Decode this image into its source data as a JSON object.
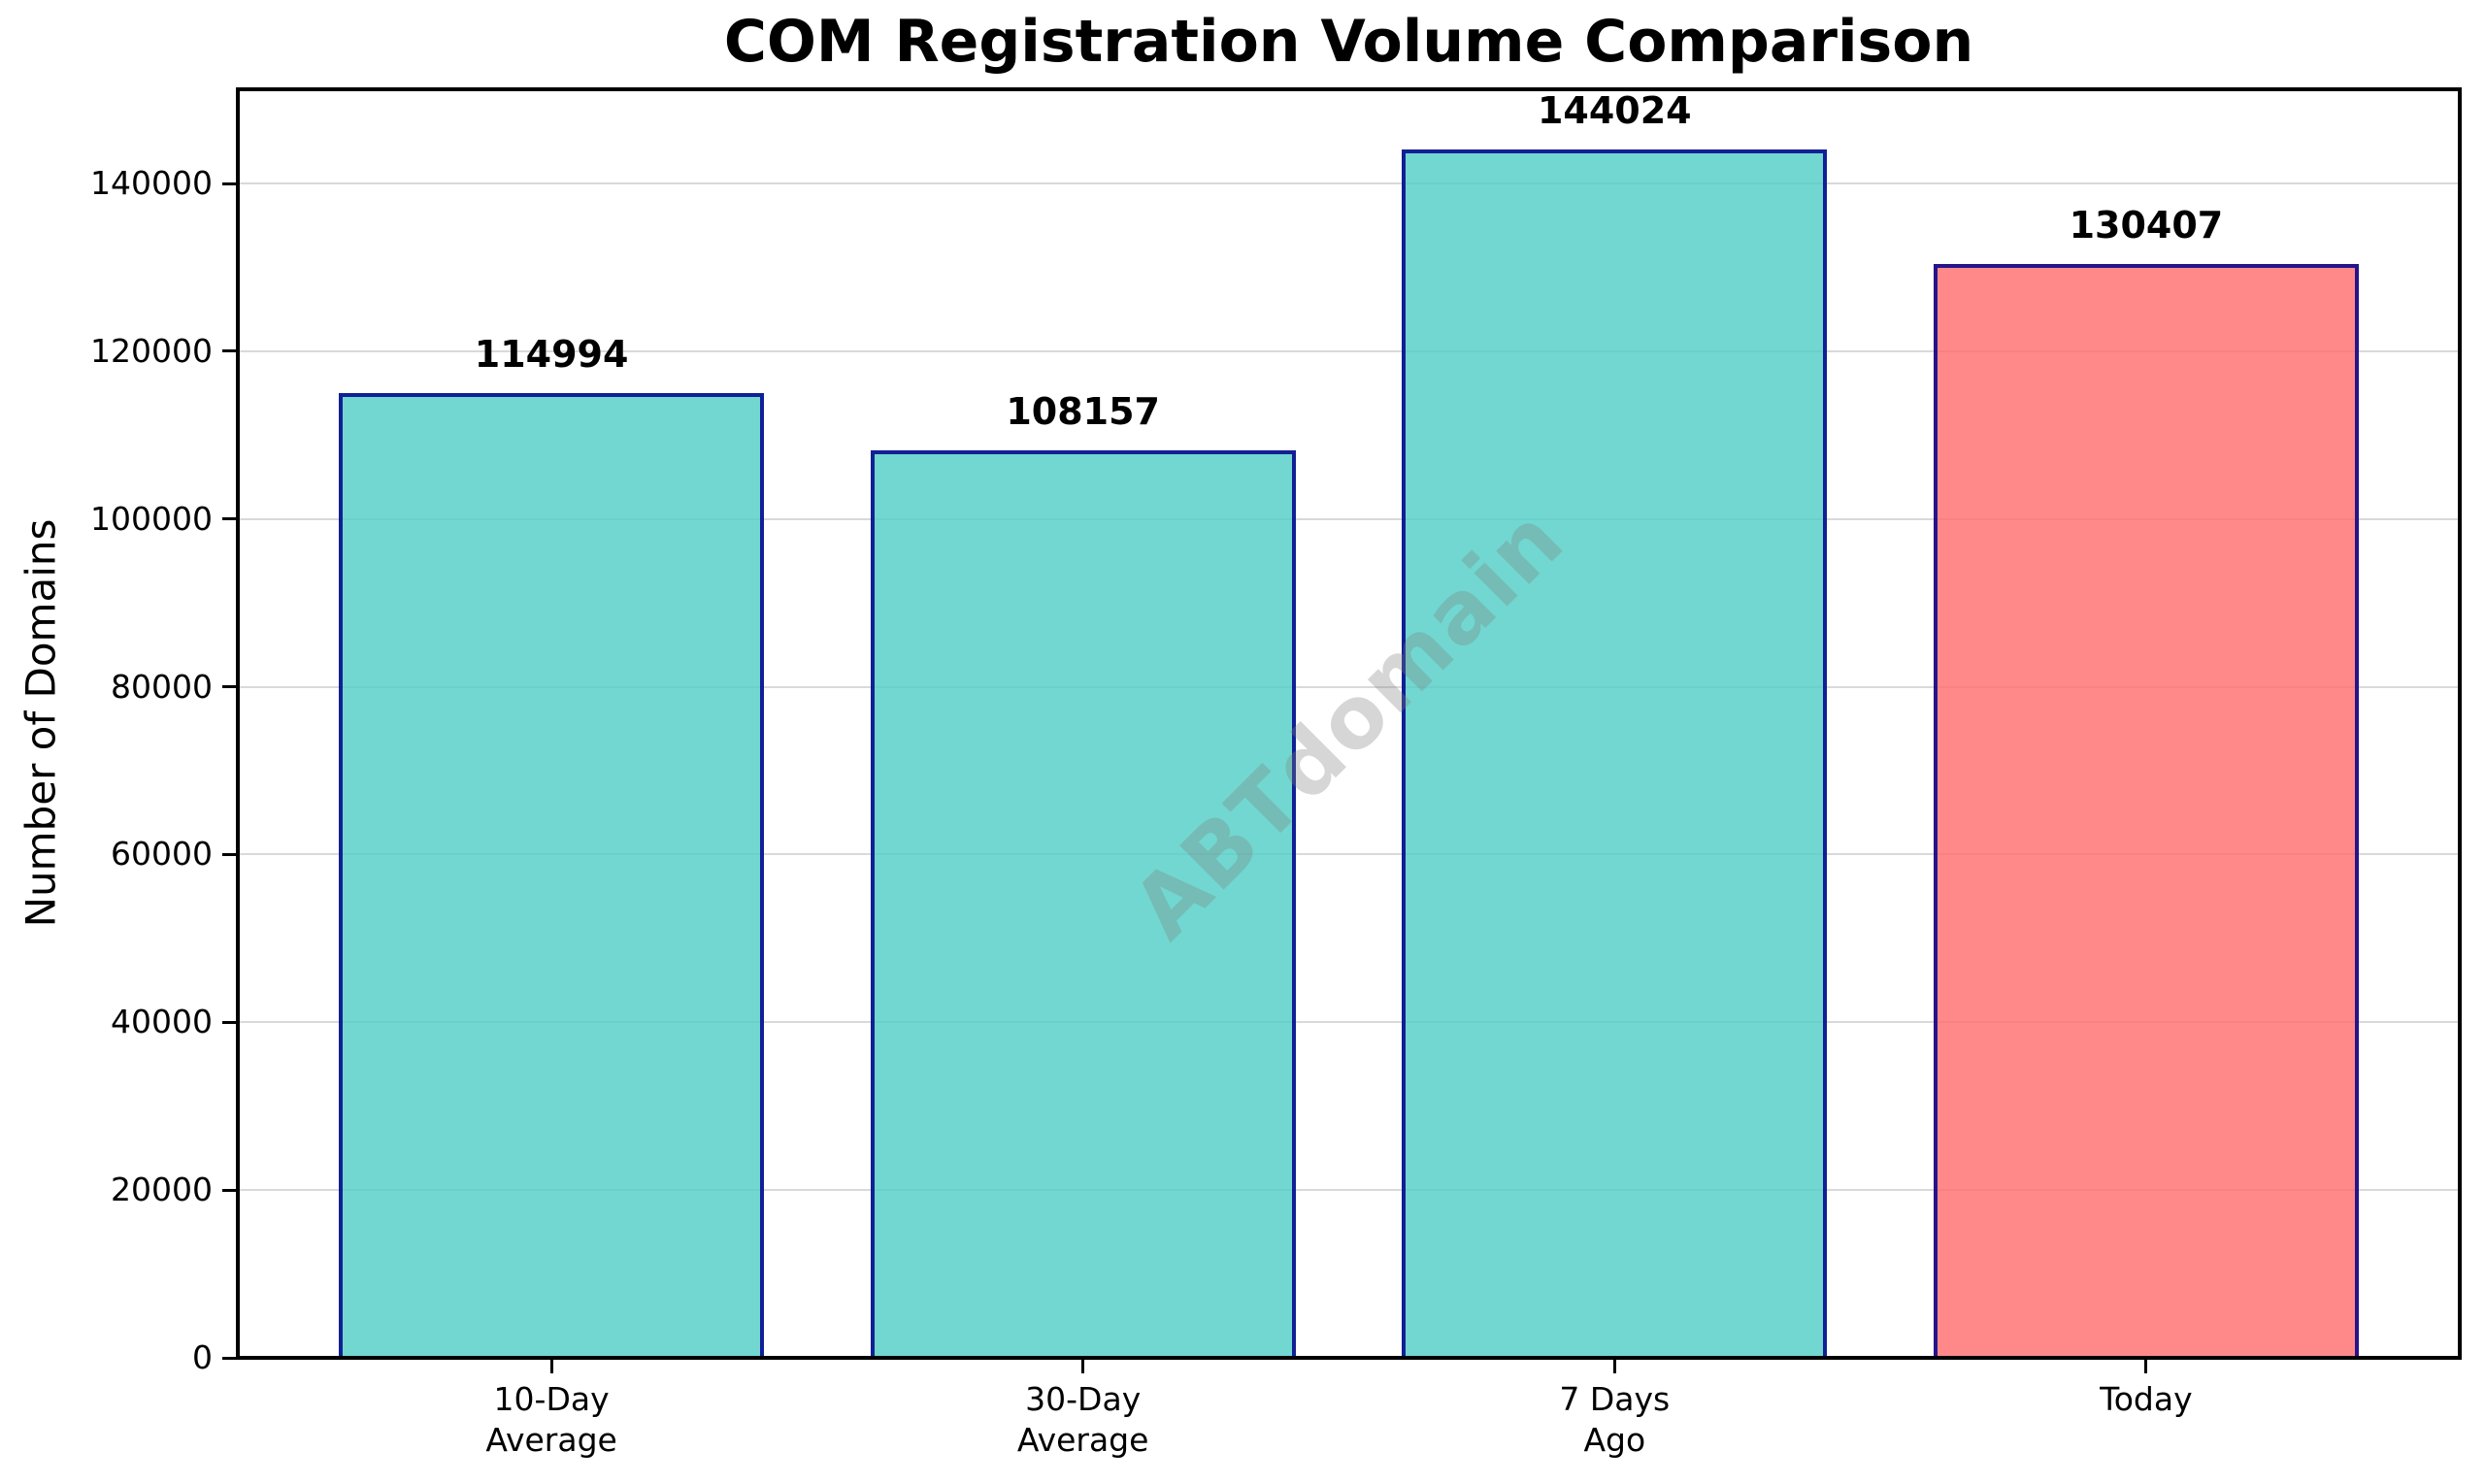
{
  "chart_data": {
    "type": "bar",
    "title": "COM Registration Volume Comparison",
    "xlabel": "",
    "ylabel": "Number of Domains",
    "categories": [
      "10-Day\nAverage",
      "30-Day\nAverage",
      "7 Days\nAgo",
      "Today"
    ],
    "values": [
      114994,
      108157,
      144024,
      130407
    ],
    "bar_labels": [
      "114994",
      "108157",
      "144024",
      "130407"
    ],
    "bar_colors": [
      "rgba(78,205,196,0.8)",
      "rgba(78,205,196,0.8)",
      "rgba(78,205,196,0.8)",
      "rgba(255,107,107,0.8)"
    ],
    "bar_edge_color": "rgba(0,0,139,0.85)",
    "yticks": [
      0,
      20000,
      40000,
      60000,
      80000,
      100000,
      120000,
      140000
    ],
    "ylim": [
      0,
      151225
    ],
    "grid": true,
    "grid_color": "#d9d9d9",
    "legend_position": "none",
    "watermark": "ABTdomain"
  }
}
